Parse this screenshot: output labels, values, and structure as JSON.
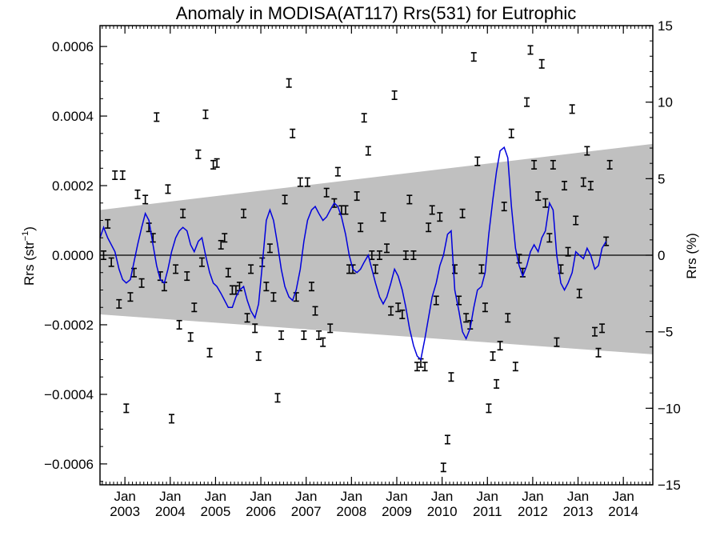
{
  "chart_data": {
    "type": "line",
    "title": "Anomaly in MODISA(AT117) Rrs(531) for Eutrophic",
    "ylabel_left_prefix": "Rrs (str",
    "ylabel_left_sup": "−1",
    "ylabel_left_suffix": ")",
    "ylabel_right": "Rrs (%)",
    "xlim": [
      2002.45,
      2014.65
    ],
    "ylim_left": [
      -0.00066,
      0.00066
    ],
    "ylim_right": [
      -15,
      15
    ],
    "x_ticks": [
      {
        "x": 2003.0,
        "top": "Jan",
        "bottom": "2003"
      },
      {
        "x": 2004.0,
        "top": "Jan",
        "bottom": "2004"
      },
      {
        "x": 2005.0,
        "top": "Jan",
        "bottom": "2005"
      },
      {
        "x": 2006.0,
        "top": "Jan",
        "bottom": "2006"
      },
      {
        "x": 2007.0,
        "top": "Jan",
        "bottom": "2007"
      },
      {
        "x": 2008.0,
        "top": "Jan",
        "bottom": "2008"
      },
      {
        "x": 2009.0,
        "top": "Jan",
        "bottom": "2009"
      },
      {
        "x": 2010.0,
        "top": "Jan",
        "bottom": "2010"
      },
      {
        "x": 2011.0,
        "top": "Jan",
        "bottom": "2011"
      },
      {
        "x": 2012.0,
        "top": "Jan",
        "bottom": "2012"
      },
      {
        "x": 2013.0,
        "top": "Jan",
        "bottom": "2013"
      },
      {
        "x": 2014.0,
        "top": "Jan",
        "bottom": "2014"
      }
    ],
    "y_ticks_left": [
      {
        "v": 0.0006,
        "label": "0.0006"
      },
      {
        "v": 0.0004,
        "label": "0.0004"
      },
      {
        "v": 0.0002,
        "label": "0.0002"
      },
      {
        "v": 0.0,
        "label": "0.0000"
      },
      {
        "v": -0.0002,
        "label": "−0.0002"
      },
      {
        "v": -0.0004,
        "label": "−0.0004"
      },
      {
        "v": -0.0006,
        "label": "−0.0006"
      }
    ],
    "y_ticks_right": [
      {
        "v": 15,
        "label": "15"
      },
      {
        "v": 10,
        "label": "10"
      },
      {
        "v": 5,
        "label": "5"
      },
      {
        "v": 0,
        "label": "0"
      },
      {
        "v": -5,
        "label": "−5"
      },
      {
        "v": -10,
        "label": "−10"
      },
      {
        "v": -15,
        "label": "−15"
      }
    ],
    "band": {
      "color": "#c0c0c0",
      "x": [
        2002.45,
        2014.65
      ],
      "upper": [
        0.00013,
        0.00032
      ],
      "lower": [
        -0.00017,
        -0.000285
      ]
    },
    "zero_line": 0,
    "error_bar_halfwidth": 1.2e-05,
    "points": [
      {
        "x": 2002.53,
        "y": 0.0
      },
      {
        "x": 2002.62,
        "y": 9e-05
      },
      {
        "x": 2002.7,
        "y": -2e-05
      },
      {
        "x": 2002.78,
        "y": 0.00023
      },
      {
        "x": 2002.87,
        "y": -0.00014
      },
      {
        "x": 2002.95,
        "y": 0.00023
      },
      {
        "x": 2003.03,
        "y": -0.00044
      },
      {
        "x": 2003.12,
        "y": -0.00012
      },
      {
        "x": 2003.2,
        "y": -5e-05
      },
      {
        "x": 2003.28,
        "y": 0.000175
      },
      {
        "x": 2003.37,
        "y": -8e-05
      },
      {
        "x": 2003.45,
        "y": 0.00016
      },
      {
        "x": 2003.53,
        "y": 8e-05
      },
      {
        "x": 2003.62,
        "y": 5e-05
      },
      {
        "x": 2003.7,
        "y": 0.000397
      },
      {
        "x": 2003.78,
        "y": -6e-05
      },
      {
        "x": 2003.87,
        "y": -9e-05
      },
      {
        "x": 2003.95,
        "y": 0.00019
      },
      {
        "x": 2004.03,
        "y": -0.00047
      },
      {
        "x": 2004.12,
        "y": -4e-05
      },
      {
        "x": 2004.2,
        "y": -0.0002
      },
      {
        "x": 2004.28,
        "y": 0.00012
      },
      {
        "x": 2004.37,
        "y": -6e-05
      },
      {
        "x": 2004.45,
        "y": -0.000235
      },
      {
        "x": 2004.53,
        "y": -0.00015
      },
      {
        "x": 2004.62,
        "y": 0.00029
      },
      {
        "x": 2004.7,
        "y": -2e-05
      },
      {
        "x": 2004.78,
        "y": 0.000405
      },
      {
        "x": 2004.87,
        "y": -0.00028
      },
      {
        "x": 2004.95,
        "y": 0.00026
      },
      {
        "x": 2005.03,
        "y": 0.000265
      },
      {
        "x": 2005.12,
        "y": 3e-05
      },
      {
        "x": 2005.2,
        "y": 5e-05
      },
      {
        "x": 2005.28,
        "y": -5e-05
      },
      {
        "x": 2005.37,
        "y": -0.0001
      },
      {
        "x": 2005.45,
        "y": -0.0001
      },
      {
        "x": 2005.53,
        "y": -9e-05
      },
      {
        "x": 2005.62,
        "y": 0.00012
      },
      {
        "x": 2005.7,
        "y": -0.00018
      },
      {
        "x": 2005.78,
        "y": -4e-05
      },
      {
        "x": 2005.87,
        "y": -0.00021
      },
      {
        "x": 2005.95,
        "y": -0.00029
      },
      {
        "x": 2006.03,
        "y": -2e-05
      },
      {
        "x": 2006.12,
        "y": -9e-05
      },
      {
        "x": 2006.2,
        "y": 2e-05
      },
      {
        "x": 2006.28,
        "y": -0.00012
      },
      {
        "x": 2006.37,
        "y": -0.00041
      },
      {
        "x": 2006.45,
        "y": -0.00023
      },
      {
        "x": 2006.53,
        "y": 0.00016
      },
      {
        "x": 2006.62,
        "y": 0.000495
      },
      {
        "x": 2006.7,
        "y": 0.00035
      },
      {
        "x": 2006.78,
        "y": -0.00012
      },
      {
        "x": 2006.87,
        "y": 0.00021
      },
      {
        "x": 2006.95,
        "y": -0.00023
      },
      {
        "x": 2007.03,
        "y": 0.00021
      },
      {
        "x": 2007.12,
        "y": -9e-05
      },
      {
        "x": 2007.2,
        "y": -0.00016
      },
      {
        "x": 2007.28,
        "y": -0.00023
      },
      {
        "x": 2007.37,
        "y": -0.00025
      },
      {
        "x": 2007.45,
        "y": 0.00018
      },
      {
        "x": 2007.53,
        "y": -0.00021
      },
      {
        "x": 2007.62,
        "y": 0.00015
      },
      {
        "x": 2007.7,
        "y": 0.00024
      },
      {
        "x": 2007.78,
        "y": 0.00013
      },
      {
        "x": 2007.87,
        "y": 0.00013
      },
      {
        "x": 2007.95,
        "y": -4e-05
      },
      {
        "x": 2008.03,
        "y": -4e-05
      },
      {
        "x": 2008.12,
        "y": 0.00017
      },
      {
        "x": 2008.2,
        "y": 8e-05
      },
      {
        "x": 2008.28,
        "y": 0.000395
      },
      {
        "x": 2008.37,
        "y": 0.0003
      },
      {
        "x": 2008.45,
        "y": 0.0
      },
      {
        "x": 2008.53,
        "y": -4e-05
      },
      {
        "x": 2008.62,
        "y": 0.0
      },
      {
        "x": 2008.7,
        "y": 0.00011
      },
      {
        "x": 2008.78,
        "y": 2e-05
      },
      {
        "x": 2008.87,
        "y": -0.00016
      },
      {
        "x": 2008.95,
        "y": 0.00046
      },
      {
        "x": 2009.03,
        "y": -0.00015
      },
      {
        "x": 2009.12,
        "y": -0.00017
      },
      {
        "x": 2009.2,
        "y": 0.0
      },
      {
        "x": 2009.28,
        "y": 0.00016
      },
      {
        "x": 2009.37,
        "y": 0.0
      },
      {
        "x": 2009.45,
        "y": -0.00032
      },
      {
        "x": 2009.53,
        "y": -0.00031
      },
      {
        "x": 2009.62,
        "y": -0.00032
      },
      {
        "x": 2009.7,
        "y": 8e-05
      },
      {
        "x": 2009.78,
        "y": 0.00013
      },
      {
        "x": 2009.87,
        "y": -0.00013
      },
      {
        "x": 2009.95,
        "y": 0.00011
      },
      {
        "x": 2010.03,
        "y": -0.00061
      },
      {
        "x": 2010.12,
        "y": -0.00053
      },
      {
        "x": 2010.2,
        "y": -0.00035
      },
      {
        "x": 2010.28,
        "y": -4e-05
      },
      {
        "x": 2010.37,
        "y": -0.00013
      },
      {
        "x": 2010.45,
        "y": 0.00012
      },
      {
        "x": 2010.53,
        "y": -0.00018
      },
      {
        "x": 2010.62,
        "y": -0.0002
      },
      {
        "x": 2010.7,
        "y": 0.00057
      },
      {
        "x": 2010.78,
        "y": 0.00027
      },
      {
        "x": 2010.87,
        "y": -4e-05
      },
      {
        "x": 2010.95,
        "y": -0.00015
      },
      {
        "x": 2011.03,
        "y": -0.00044
      },
      {
        "x": 2011.12,
        "y": -0.00029
      },
      {
        "x": 2011.2,
        "y": -0.00037
      },
      {
        "x": 2011.28,
        "y": -0.00026
      },
      {
        "x": 2011.37,
        "y": 0.00014
      },
      {
        "x": 2011.45,
        "y": -0.00018
      },
      {
        "x": 2011.53,
        "y": 0.00035
      },
      {
        "x": 2011.62,
        "y": -0.00032
      },
      {
        "x": 2011.7,
        "y": -1e-05
      },
      {
        "x": 2011.78,
        "y": -5e-05
      },
      {
        "x": 2011.87,
        "y": 0.00044
      },
      {
        "x": 2011.95,
        "y": 0.00059
      },
      {
        "x": 2012.03,
        "y": 0.00026
      },
      {
        "x": 2012.12,
        "y": 0.00017
      },
      {
        "x": 2012.2,
        "y": 0.00055
      },
      {
        "x": 2012.28,
        "y": 0.00015
      },
      {
        "x": 2012.37,
        "y": 5e-05
      },
      {
        "x": 2012.45,
        "y": 0.00026
      },
      {
        "x": 2012.53,
        "y": -0.00025
      },
      {
        "x": 2012.62,
        "y": -4e-05
      },
      {
        "x": 2012.7,
        "y": 0.0002
      },
      {
        "x": 2012.78,
        "y": 1e-05
      },
      {
        "x": 2012.87,
        "y": 0.00042
      },
      {
        "x": 2012.95,
        "y": 0.0001
      },
      {
        "x": 2013.03,
        "y": -0.00011
      },
      {
        "x": 2013.12,
        "y": 0.00021
      },
      {
        "x": 2013.2,
        "y": 0.0003
      },
      {
        "x": 2013.28,
        "y": 0.0002
      },
      {
        "x": 2013.37,
        "y": -0.00022
      },
      {
        "x": 2013.45,
        "y": -0.00028
      },
      {
        "x": 2013.53,
        "y": -0.00021
      },
      {
        "x": 2013.62,
        "y": 4e-05
      },
      {
        "x": 2013.7,
        "y": 0.00026
      }
    ],
    "series": [
      {
        "name": "",
        "color": "#0000dd",
        "x": [
          2002.45,
          2002.53,
          2002.62,
          2002.7,
          2002.78,
          2002.87,
          2002.95,
          2003.03,
          2003.12,
          2003.2,
          2003.28,
          2003.37,
          2003.45,
          2003.53,
          2003.62,
          2003.7,
          2003.78,
          2003.87,
          2003.95,
          2004.03,
          2004.12,
          2004.2,
          2004.28,
          2004.37,
          2004.45,
          2004.53,
          2004.62,
          2004.7,
          2004.78,
          2004.87,
          2004.95,
          2005.03,
          2005.12,
          2005.2,
          2005.28,
          2005.37,
          2005.45,
          2005.53,
          2005.62,
          2005.7,
          2005.78,
          2005.87,
          2005.95,
          2006.03,
          2006.12,
          2006.2,
          2006.28,
          2006.37,
          2006.45,
          2006.53,
          2006.62,
          2006.7,
          2006.78,
          2006.87,
          2006.95,
          2007.03,
          2007.12,
          2007.2,
          2007.28,
          2007.37,
          2007.45,
          2007.53,
          2007.62,
          2007.7,
          2007.78,
          2007.87,
          2007.95,
          2008.03,
          2008.12,
          2008.2,
          2008.28,
          2008.37,
          2008.45,
          2008.53,
          2008.62,
          2008.7,
          2008.78,
          2008.87,
          2008.95,
          2009.03,
          2009.12,
          2009.2,
          2009.28,
          2009.37,
          2009.45,
          2009.53,
          2009.62,
          2009.7,
          2009.78,
          2009.87,
          2009.95,
          2010.03,
          2010.12,
          2010.2,
          2010.28,
          2010.37,
          2010.45,
          2010.53,
          2010.62,
          2010.7,
          2010.78,
          2010.87,
          2010.95,
          2011.03,
          2011.12,
          2011.2,
          2011.28,
          2011.37,
          2011.45,
          2011.53,
          2011.62,
          2011.7,
          2011.78,
          2011.87,
          2011.95,
          2012.03,
          2012.12,
          2012.2,
          2012.28,
          2012.37,
          2012.45,
          2012.53,
          2012.62,
          2012.7,
          2012.78,
          2012.87,
          2012.95,
          2013.03,
          2013.12,
          2013.2,
          2013.28,
          2013.37,
          2013.45,
          2013.53,
          2013.62
        ],
        "values": [
          5e-05,
          8e-05,
          5e-05,
          3e-05,
          1e-05,
          -4e-05,
          -7e-05,
          -8e-05,
          -7e-05,
          -2e-05,
          3e-05,
          8e-05,
          0.00012,
          0.0001,
          3e-05,
          -3e-05,
          -7e-05,
          -8e-05,
          -4e-05,
          1e-05,
          5e-05,
          7e-05,
          8e-05,
          7e-05,
          3e-05,
          1e-05,
          4e-05,
          5e-05,
          0.0,
          -5e-05,
          -8e-05,
          -9e-05,
          -0.00011,
          -0.00013,
          -0.00015,
          -0.00015,
          -0.00012,
          -0.0001,
          -9e-05,
          -0.00013,
          -0.00016,
          -0.00018,
          -0.00014,
          -3e-05,
          0.0001,
          0.00013,
          0.0001,
          3e-05,
          -4e-05,
          -9e-05,
          -0.00012,
          -0.00013,
          -0.0001,
          -4e-05,
          4e-05,
          0.0001,
          0.00013,
          0.00014,
          0.00012,
          0.0001,
          0.00011,
          0.00013,
          0.00015,
          0.00014,
          0.00011,
          6e-05,
          0.0,
          -4e-05,
          -5e-05,
          -4e-05,
          -2e-05,
          0.0,
          -4e-05,
          -8e-05,
          -0.00012,
          -0.00014,
          -0.00012,
          -8e-05,
          -4e-05,
          -6e-05,
          -0.0001,
          -0.00015,
          -0.00021,
          -0.00026,
          -0.00029,
          -0.0003,
          -0.00024,
          -0.00018,
          -0.00012,
          -8e-05,
          -3e-05,
          0.0,
          6e-05,
          7e-05,
          -0.0001,
          -0.00016,
          -0.00022,
          -0.00024,
          -0.00021,
          -0.00015,
          -0.0001,
          -9e-05,
          -5e-05,
          6e-05,
          0.00016,
          0.00024,
          0.0003,
          0.00031,
          0.00028,
          0.00014,
          2e-05,
          -3e-05,
          -6e-05,
          -3e-05,
          1e-05,
          3e-05,
          1e-05,
          5e-05,
          7e-05,
          0.00015,
          0.00013,
          0.0,
          -8e-05,
          -0.0001,
          -8e-05,
          -5e-05,
          1e-05,
          0.0,
          -1e-05,
          2e-05,
          0.0,
          -4e-05,
          -3e-05,
          2e-05,
          4e-05
        ]
      }
    ]
  }
}
